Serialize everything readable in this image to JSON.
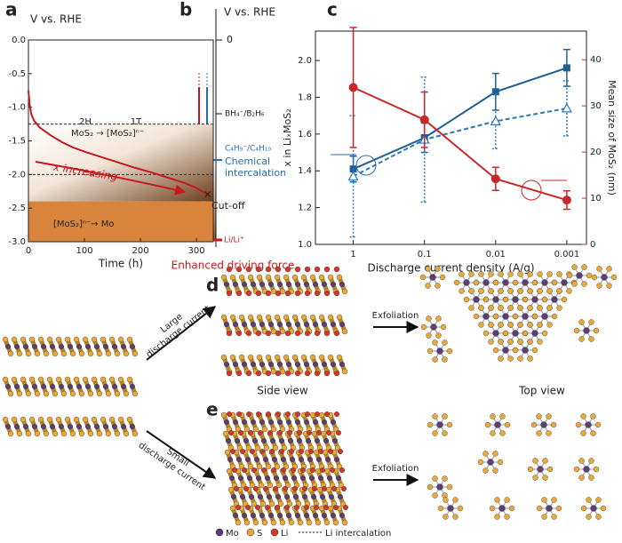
{
  "chart_data": [
    {
      "type": "line",
      "panel_label": "a",
      "ylabel": "V vs. RHE",
      "xlabel": "Time (h)",
      "x": [
        0,
        2,
        5,
        10,
        20,
        40,
        60,
        80,
        100,
        130,
        160,
        190,
        220,
        250,
        280,
        300,
        320
      ],
      "series": [
        {
          "color": "#c8181e",
          "values": [
            -0.75,
            -0.95,
            -1.1,
            -1.2,
            -1.3,
            -1.42,
            -1.52,
            -1.6,
            -1.66,
            -1.74,
            -1.82,
            -1.9,
            -1.97,
            -2.05,
            -2.13,
            -2.2,
            -2.3
          ]
        }
      ],
      "xlim": [
        0,
        330
      ],
      "ylim": [
        -3,
        0
      ],
      "xticks": [
        0,
        100,
        200,
        300
      ],
      "yticks": [
        {
          "value": 0,
          "label": "0.0"
        },
        -0.5,
        {
          "value": -1,
          "label": "-1.0"
        },
        -1.5,
        {
          "value": -2,
          "label": "-2.0"
        },
        -2.5,
        {
          "value": -3,
          "label": "-3.0"
        }
      ],
      "dashed_levels": [
        -1.25,
        -2
      ],
      "shaded_range": [
        -2.4,
        -3
      ],
      "annotations": [
        "2H",
        "1T",
        "MoS₂ → [MoS₂]ⁿ⁻",
        "x increasing",
        "Cut-off",
        "[MoS₂]ⁿ⁻→ Mo"
      ]
    },
    {
      "type": "errorbar",
      "panel_label": "c",
      "xlabel": "Discharge current density (A/g)",
      "ylabel": "x in LiₓMoS₂",
      "y2label": "Mean size of MoS₂ (nm)",
      "x": [
        1,
        0.1,
        0.01,
        0.001
      ],
      "xscale": "log",
      "xlim": [
        3.4,
        0.00053
      ],
      "xticks": [
        1,
        0.1,
        0.01,
        0.001
      ],
      "ylim": [
        1,
        2.16
      ],
      "yticks": [
        {
          "value": 1,
          "label": "1.0"
        },
        1.2,
        1.4,
        1.6,
        1.8,
        {
          "value": 2,
          "label": "2.0"
        }
      ],
      "y2lim": [
        0,
        46.2
      ],
      "y2ticks": [
        0,
        10,
        20,
        30,
        40
      ],
      "series": [
        {
          "color": "#1f5f95",
          "marker": "square",
          "line": "solid",
          "values": [
            1.41,
            1.58,
            1.83,
            1.96
          ],
          "errors": [
            0.07,
            0.08,
            0.1,
            0.1
          ]
        },
        {
          "color": "#2a78b8",
          "marker": "triangle",
          "line": "dashed",
          "values": [
            1.37,
            1.57,
            1.67,
            1.74
          ],
          "errors": [
            0.33,
            0.34,
            0.15,
            0.15
          ]
        },
        {
          "color": "#c8282a",
          "marker": "circle",
          "line": "solid",
          "axis": "y2",
          "values": [
            34,
            27,
            14.2,
            9.6
          ],
          "errors": [
            13,
            6,
            2.5,
            2
          ]
        }
      ]
    }
  ],
  "panel_b": {
    "label": "b",
    "axis_title": "V vs. RHE",
    "zero": "0",
    "level_1": "BH₄⁻/B₂H₆",
    "level_2": "C₄H₉⁻/C₄H₁₀",
    "chemical": [
      "Chemical",
      "intercalation"
    ],
    "lithium": "Li/Li⁺",
    "caption": "Enhanced driving force"
  },
  "panel_d": {
    "label": "d",
    "arrow": [
      "Large",
      "discharge current"
    ],
    "exfoliation": "Exfoliation",
    "side_view": "Side view",
    "top_view": "Top view"
  },
  "panel_e": {
    "label": "e",
    "arrow": [
      "Small",
      "discharge current"
    ],
    "exfoliation": "Exfoliation"
  },
  "legend": {
    "mo": "Mo",
    "s": "S",
    "li": "Li",
    "intercalation": "Li intercalation"
  }
}
